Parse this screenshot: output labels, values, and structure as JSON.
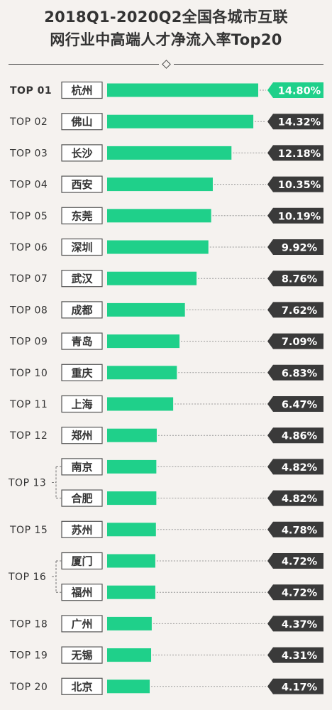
{
  "title_line1": "2018Q1-2020Q2全国各城市互联",
  "title_line2": "网行业中高端人才净流入率Top20",
  "chart_data": {
    "type": "bar",
    "orientation": "horizontal",
    "rows": [
      {
        "rank": "TOP 01",
        "city": "杭州",
        "value": 14.8,
        "label": "14.80%",
        "highlight": true
      },
      {
        "rank": "TOP 02",
        "city": "佛山",
        "value": 14.32,
        "label": "14.32%"
      },
      {
        "rank": "TOP 03",
        "city": "长沙",
        "value": 12.18,
        "label": "12.18%"
      },
      {
        "rank": "TOP 04",
        "city": "西安",
        "value": 10.35,
        "label": "10.35%"
      },
      {
        "rank": "TOP 05",
        "city": "东莞",
        "value": 10.19,
        "label": "10.19%"
      },
      {
        "rank": "TOP 06",
        "city": "深圳",
        "value": 9.92,
        "label": "9.92%"
      },
      {
        "rank": "TOP 07",
        "city": "武汉",
        "value": 8.76,
        "label": "8.76%"
      },
      {
        "rank": "TOP 08",
        "city": "成都",
        "value": 7.62,
        "label": "7.62%"
      },
      {
        "rank": "TOP 09",
        "city": "青岛",
        "value": 7.09,
        "label": "7.09%"
      },
      {
        "rank": "TOP 10",
        "city": "重庆",
        "value": 6.83,
        "label": "6.83%"
      },
      {
        "rank": "TOP 11",
        "city": "上海",
        "value": 6.47,
        "label": "6.47%"
      },
      {
        "rank": "TOP 12",
        "city": "郑州",
        "value": 4.86,
        "label": "4.86%"
      },
      {
        "rank": "TOP 13",
        "city": "南京",
        "value": 4.82,
        "label": "4.82%"
      },
      {
        "rank": "TOP 13",
        "city": "合肥",
        "value": 4.82,
        "label": "4.82%"
      },
      {
        "rank": "TOP 15",
        "city": "苏州",
        "value": 4.78,
        "label": "4.78%"
      },
      {
        "rank": "TOP 16",
        "city": "厦门",
        "value": 4.72,
        "label": "4.72%"
      },
      {
        "rank": "TOP 16",
        "city": "福州",
        "value": 4.72,
        "label": "4.72%"
      },
      {
        "rank": "TOP 18",
        "city": "广州",
        "value": 4.37,
        "label": "4.37%"
      },
      {
        "rank": "TOP 19",
        "city": "无锡",
        "value": 4.31,
        "label": "4.31%"
      },
      {
        "rank": "TOP 20",
        "city": "北京",
        "value": 4.17,
        "label": "4.17%"
      }
    ],
    "colors": {
      "bar": "#1fd08a",
      "highlight_badge": "#1fd08a",
      "badge": "#3a3a3a",
      "badge_text": "#ffffff",
      "text": "#333333",
      "dotted_line": "#9a9a9a"
    }
  }
}
